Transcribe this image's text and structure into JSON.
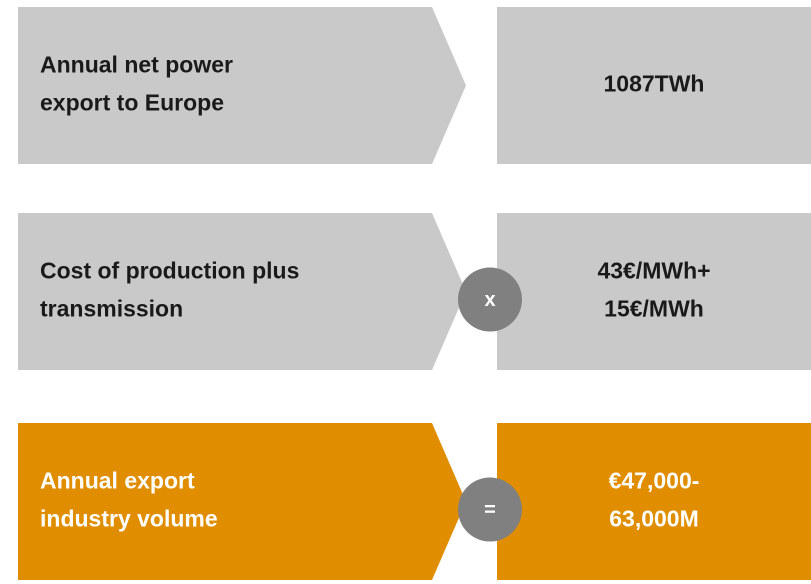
{
  "rows": [
    {
      "label": [
        "Annual net power",
        "export to Europe"
      ],
      "value": [
        "1087TWh"
      ]
    },
    {
      "label": [
        "Cost of production plus",
        "transmission"
      ],
      "operator": "x",
      "value": [
        "43€/MWh+",
        "15€/MWh"
      ]
    },
    {
      "label": [
        "Annual export",
        "industry volume"
      ],
      "operator": "=",
      "value": [
        "€47,000-",
        "63,000M"
      ]
    }
  ]
}
